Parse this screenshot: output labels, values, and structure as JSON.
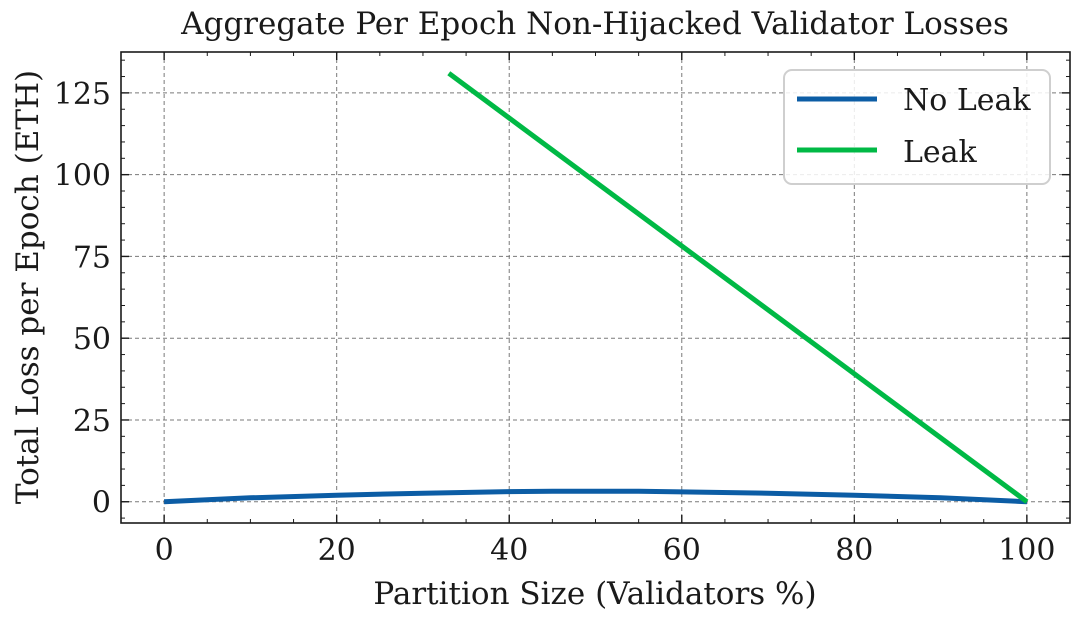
{
  "chart_data": {
    "type": "line",
    "title": "Aggregate Per Epoch Non-Hijacked Validator Losses",
    "xlabel": "Partition Size (Validators %)",
    "ylabel": "Total Loss per Epoch (ETH)",
    "xlim": [
      -5,
      105
    ],
    "ylim": [
      -6.5,
      137.5
    ],
    "xticks": [
      0,
      20,
      40,
      60,
      80,
      100
    ],
    "yticks": [
      0,
      25,
      50,
      75,
      100,
      125
    ],
    "grid": true,
    "legend_position": "top-right",
    "series": [
      {
        "name": "No Leak",
        "color": "#0C5DA5",
        "x": [
          0,
          10,
          20,
          30,
          40,
          45,
          50,
          55,
          60,
          70,
          80,
          90,
          100
        ],
        "y": [
          0,
          1.2,
          2.0,
          2.6,
          3.1,
          3.2,
          3.2,
          3.2,
          3.0,
          2.6,
          2.0,
          1.2,
          0
        ]
      },
      {
        "name": "Leak",
        "color": "#00B945",
        "x": [
          33,
          100
        ],
        "y": [
          131,
          0
        ]
      }
    ]
  }
}
